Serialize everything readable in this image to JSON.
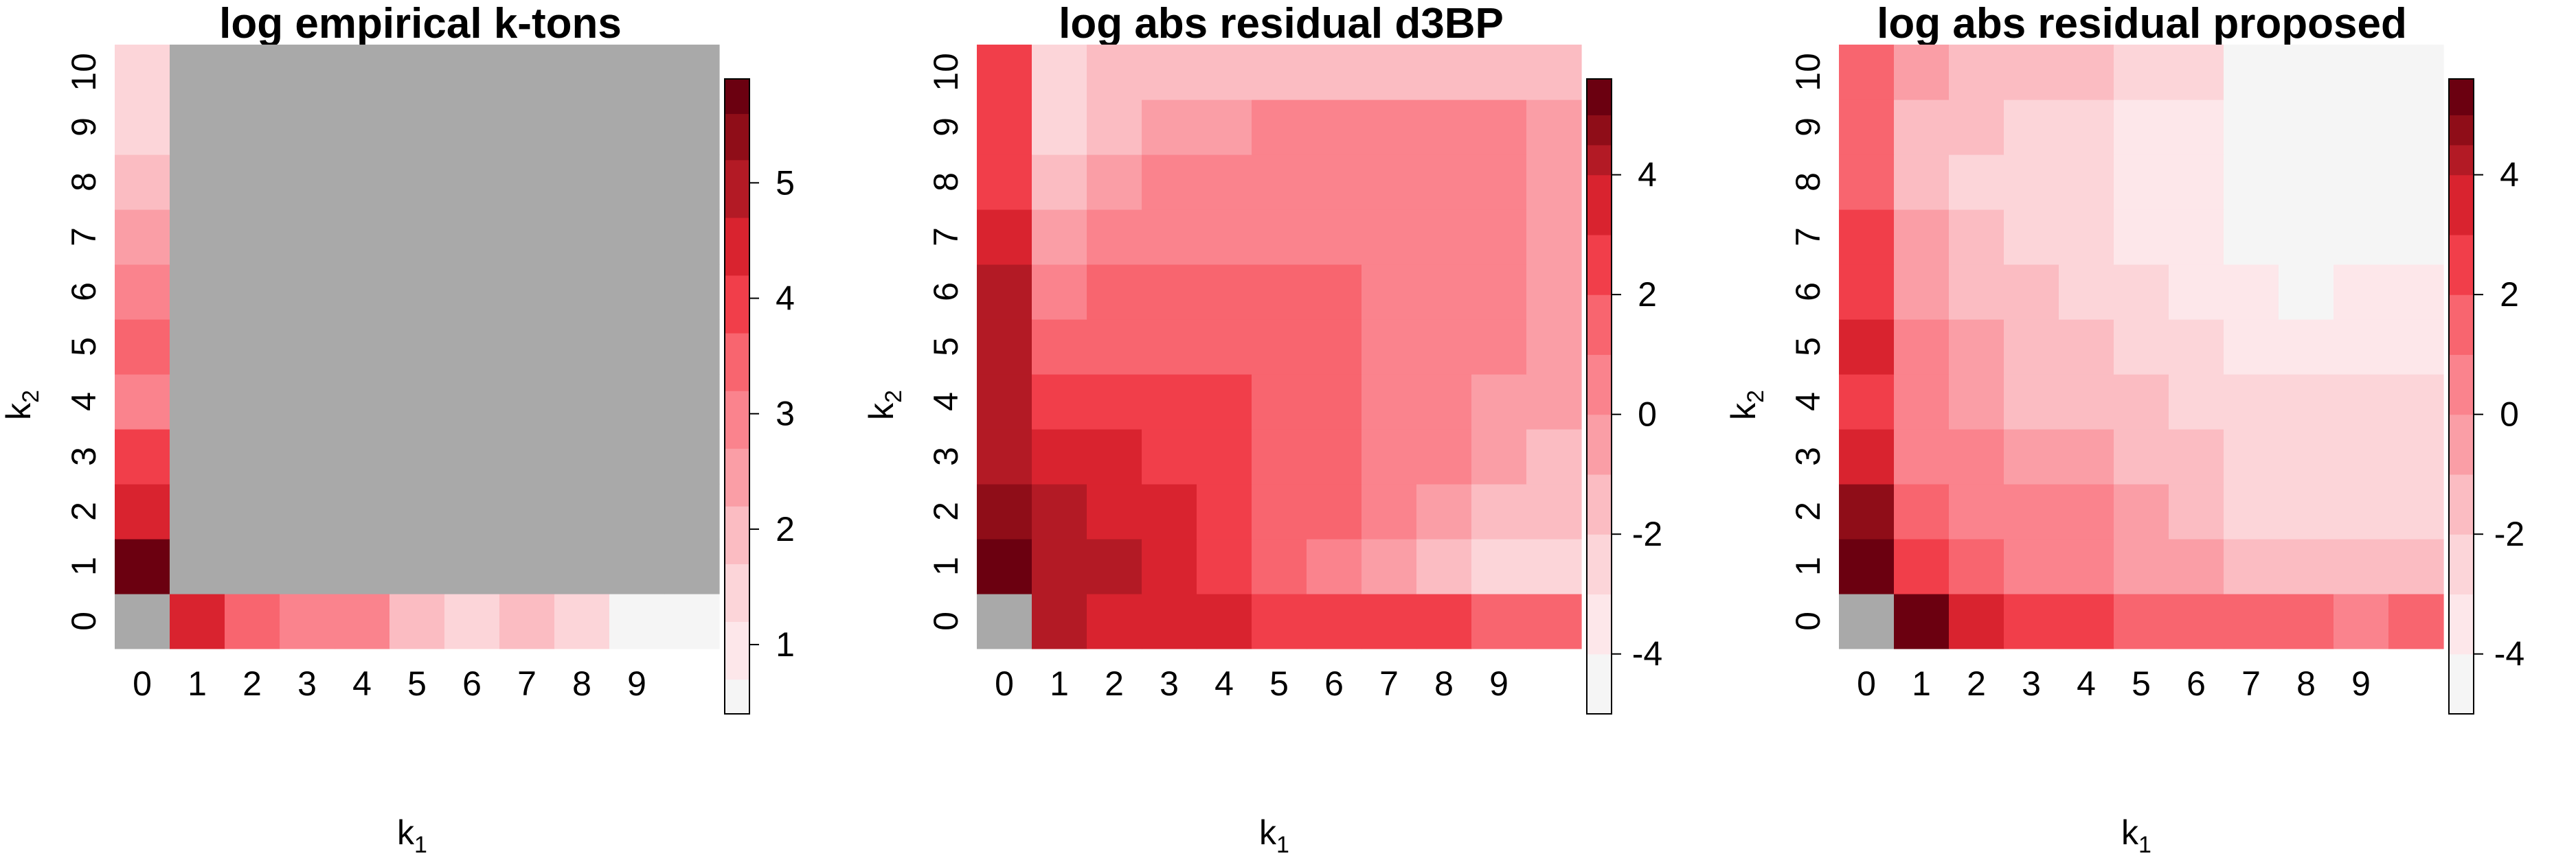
{
  "chart_data": [
    {
      "type": "heatmap",
      "title": "log empirical k-tons",
      "xlabel": "k",
      "xlabel_sub": "1",
      "ylabel": "k",
      "ylabel_sub": "2",
      "x_ticks": [
        "0",
        "1",
        "2",
        "3",
        "4",
        "5",
        "6",
        "7",
        "8",
        "9"
      ],
      "y_ticks": [
        "0",
        "1",
        "2",
        "3",
        "4",
        "5",
        "6",
        "7",
        "8",
        "9",
        "10"
      ],
      "missing_color": "#a9a9a9",
      "colorbar_ticks": [
        "1",
        "2",
        "3",
        "4",
        "5"
      ],
      "color_range": [
        0.4,
        5.9
      ],
      "color_bins": [
        {
          "min": 0.4,
          "max": 0.7,
          "color": "#f5f5f5"
        },
        {
          "min": 0.7,
          "max": 1.2,
          "color": "#fde7ea"
        },
        {
          "min": 1.2,
          "max": 1.7,
          "color": "#fcd5d9"
        },
        {
          "min": 1.7,
          "max": 2.2,
          "color": "#fbbcc2"
        },
        {
          "min": 2.2,
          "max": 2.7,
          "color": "#fa9ea6"
        },
        {
          "min": 2.7,
          "max": 3.2,
          "color": "#fa838d"
        },
        {
          "min": 3.2,
          "max": 3.7,
          "color": "#f8656f"
        },
        {
          "min": 3.7,
          "max": 4.2,
          "color": "#f13e4a"
        },
        {
          "min": 4.2,
          "max": 4.7,
          "color": "#d9232f"
        },
        {
          "min": 4.7,
          "max": 5.2,
          "color": "#b31a25"
        },
        {
          "min": 5.2,
          "max": 5.6,
          "color": "#8f0d18"
        },
        {
          "min": 5.6,
          "max": 5.9,
          "color": "#6b0010"
        }
      ],
      "x_count": 11,
      "y_count": 11,
      "values": [
        [
          null,
          4.4,
          3.5,
          3.0,
          3.0,
          2.0,
          1.5,
          2.0,
          1.5,
          0.5,
          0.5
        ],
        [
          5.8,
          null,
          null,
          null,
          null,
          null,
          null,
          null,
          null,
          null,
          null
        ],
        [
          4.4,
          null,
          null,
          null,
          null,
          null,
          null,
          null,
          null,
          null,
          null
        ],
        [
          4.0,
          null,
          null,
          null,
          null,
          null,
          null,
          null,
          null,
          null,
          null
        ],
        [
          3.0,
          null,
          null,
          null,
          null,
          null,
          null,
          null,
          null,
          null,
          null
        ],
        [
          3.4,
          null,
          null,
          null,
          null,
          null,
          null,
          null,
          null,
          null,
          null
        ],
        [
          3.0,
          null,
          null,
          null,
          null,
          null,
          null,
          null,
          null,
          null,
          null
        ],
        [
          2.5,
          null,
          null,
          null,
          null,
          null,
          null,
          null,
          null,
          null,
          null
        ],
        [
          2.0,
          null,
          null,
          null,
          null,
          null,
          null,
          null,
          null,
          null,
          null
        ],
        [
          1.5,
          null,
          null,
          null,
          null,
          null,
          null,
          null,
          null,
          null,
          null
        ],
        [
          1.5,
          null,
          null,
          null,
          null,
          null,
          null,
          null,
          null,
          null,
          null
        ]
      ]
    },
    {
      "type": "heatmap",
      "title": "log abs residual d3BP",
      "xlabel": "k",
      "xlabel_sub": "1",
      "ylabel": "k",
      "ylabel_sub": "2",
      "x_ticks": [
        "0",
        "1",
        "2",
        "3",
        "4",
        "5",
        "6",
        "7",
        "8",
        "9"
      ],
      "y_ticks": [
        "0",
        "1",
        "2",
        "3",
        "4",
        "5",
        "6",
        "7",
        "8",
        "9",
        "10"
      ],
      "missing_color": "#a9a9a9",
      "colorbar_ticks": [
        "-4",
        "-2",
        "0",
        "2",
        "4"
      ],
      "color_range": [
        -5,
        5.6
      ],
      "color_bins": [
        {
          "min": -5.0,
          "max": -4.0,
          "color": "#f5f5f5"
        },
        {
          "min": -4.0,
          "max": -3.0,
          "color": "#fde7ea"
        },
        {
          "min": -3.0,
          "max": -2.0,
          "color": "#fcd5d9"
        },
        {
          "min": -2.0,
          "max": -1.0,
          "color": "#fbbcc2"
        },
        {
          "min": -1.0,
          "max": 0.0,
          "color": "#fa9ea6"
        },
        {
          "min": 0.0,
          "max": 1.0,
          "color": "#fa838d"
        },
        {
          "min": 1.0,
          "max": 2.0,
          "color": "#f8656f"
        },
        {
          "min": 2.0,
          "max": 3.0,
          "color": "#f13e4a"
        },
        {
          "min": 3.0,
          "max": 4.0,
          "color": "#d9232f"
        },
        {
          "min": 4.0,
          "max": 4.5,
          "color": "#b31a25"
        },
        {
          "min": 4.5,
          "max": 5.0,
          "color": "#8f0d18"
        },
        {
          "min": 5.0,
          "max": 5.6,
          "color": "#6b0010"
        }
      ],
      "x_count": 11,
      "y_count": 11,
      "values": [
        [
          null,
          4.2,
          3.5,
          3.5,
          3.5,
          2.5,
          2.5,
          2.5,
          2.5,
          1.5,
          1.5
        ],
        [
          5.2,
          4.2,
          4.2,
          3.5,
          2.5,
          1.5,
          0.5,
          -0.5,
          -1.5,
          -2.5,
          -2.5
        ],
        [
          4.7,
          4.2,
          3.5,
          3.5,
          2.5,
          1.5,
          1.5,
          0.5,
          -0.5,
          -1.5,
          -1.5
        ],
        [
          4.2,
          3.5,
          3.5,
          2.5,
          2.5,
          1.5,
          1.5,
          0.5,
          0.5,
          -0.5,
          -1.5
        ],
        [
          4.2,
          2.5,
          2.5,
          2.5,
          2.5,
          1.5,
          1.5,
          0.5,
          0.5,
          -0.5,
          -0.5
        ],
        [
          4.2,
          1.5,
          1.5,
          1.5,
          1.5,
          1.5,
          1.5,
          0.5,
          0.5,
          0.5,
          -0.5
        ],
        [
          4.2,
          0.5,
          1.5,
          1.5,
          1.5,
          1.5,
          1.5,
          0.5,
          0.5,
          0.5,
          -0.5
        ],
        [
          3.5,
          -0.5,
          0.5,
          0.5,
          0.5,
          0.5,
          0.5,
          0.5,
          0.5,
          0.5,
          -0.5
        ],
        [
          2.5,
          -1.5,
          -0.5,
          0.5,
          0.5,
          0.5,
          0.5,
          0.5,
          0.5,
          0.5,
          -0.5
        ],
        [
          2.5,
          -2.5,
          -1.5,
          -0.5,
          -0.5,
          0.5,
          0.5,
          0.5,
          0.5,
          0.5,
          -0.5
        ],
        [
          2.5,
          -2.5,
          -1.5,
          -1.5,
          -1.5,
          -1.5,
          -1.5,
          -1.5,
          -1.5,
          -1.5,
          -1.5
        ]
      ]
    },
    {
      "type": "heatmap",
      "title": "log abs residual proposed",
      "xlabel": "k",
      "xlabel_sub": "1",
      "ylabel": "k",
      "ylabel_sub": "2",
      "x_ticks": [
        "0",
        "1",
        "2",
        "3",
        "4",
        "5",
        "6",
        "7",
        "8",
        "9"
      ],
      "y_ticks": [
        "0",
        "1",
        "2",
        "3",
        "4",
        "5",
        "6",
        "7",
        "8",
        "9",
        "10"
      ],
      "missing_color": "#a9a9a9",
      "colorbar_ticks": [
        "-4",
        "-2",
        "0",
        "2",
        "4"
      ],
      "color_range": [
        -5,
        5.6
      ],
      "color_bins": [
        {
          "min": -5.0,
          "max": -4.0,
          "color": "#f5f5f5"
        },
        {
          "min": -4.0,
          "max": -3.0,
          "color": "#fde7ea"
        },
        {
          "min": -3.0,
          "max": -2.0,
          "color": "#fcd5d9"
        },
        {
          "min": -2.0,
          "max": -1.0,
          "color": "#fbbcc2"
        },
        {
          "min": -1.0,
          "max": 0.0,
          "color": "#fa9ea6"
        },
        {
          "min": 0.0,
          "max": 1.0,
          "color": "#fa838d"
        },
        {
          "min": 1.0,
          "max": 2.0,
          "color": "#f8656f"
        },
        {
          "min": 2.0,
          "max": 3.0,
          "color": "#f13e4a"
        },
        {
          "min": 3.0,
          "max": 4.0,
          "color": "#d9232f"
        },
        {
          "min": 4.0,
          "max": 4.5,
          "color": "#b31a25"
        },
        {
          "min": 4.5,
          "max": 5.0,
          "color": "#8f0d18"
        },
        {
          "min": 5.0,
          "max": 5.6,
          "color": "#6b0010"
        }
      ],
      "x_count": 11,
      "y_count": 11,
      "values": [
        [
          null,
          5.2,
          3.5,
          2.5,
          2.5,
          1.5,
          1.5,
          1.5,
          1.5,
          0.5,
          1.5
        ],
        [
          5.2,
          2.5,
          1.5,
          0.5,
          0.5,
          -0.5,
          -0.5,
          -1.5,
          -1.5,
          -1.5,
          -1.5
        ],
        [
          4.7,
          1.5,
          0.5,
          0.5,
          0.5,
          -0.5,
          -1.5,
          -2.5,
          -2.5,
          -2.5,
          -2.5
        ],
        [
          3.5,
          0.5,
          0.5,
          -0.5,
          -0.5,
          -1.5,
          -1.5,
          -2.5,
          -2.5,
          -2.5,
          -2.5
        ],
        [
          2.5,
          0.5,
          -0.5,
          -1.5,
          -1.5,
          -1.5,
          -2.5,
          -2.5,
          -2.5,
          -2.5,
          -2.5
        ],
        [
          3.5,
          0.5,
          -0.5,
          -1.5,
          -1.5,
          -2.5,
          -2.5,
          -3.5,
          -3.5,
          -3.5,
          -3.5
        ],
        [
          2.5,
          -0.5,
          -1.5,
          -1.5,
          -2.5,
          -2.5,
          -3.5,
          -3.5,
          -4.5,
          -3.5,
          -3.5
        ],
        [
          2.5,
          -0.5,
          -1.5,
          -2.5,
          -2.5,
          -3.5,
          -3.5,
          -4.5,
          -4.5,
          -4.5,
          -4.5
        ],
        [
          1.5,
          -1.5,
          -2.5,
          -2.5,
          -2.5,
          -3.5,
          -3.5,
          -4.5,
          -4.5,
          -4.5,
          -4.5
        ],
        [
          1.5,
          -1.5,
          -1.5,
          -2.5,
          -2.5,
          -3.5,
          -3.5,
          -4.5,
          -4.5,
          -4.5,
          -4.5
        ],
        [
          1.5,
          -0.5,
          -1.5,
          -1.5,
          -1.5,
          -2.5,
          -2.5,
          -4.5,
          -4.5,
          -4.5,
          -4.5
        ]
      ]
    }
  ]
}
